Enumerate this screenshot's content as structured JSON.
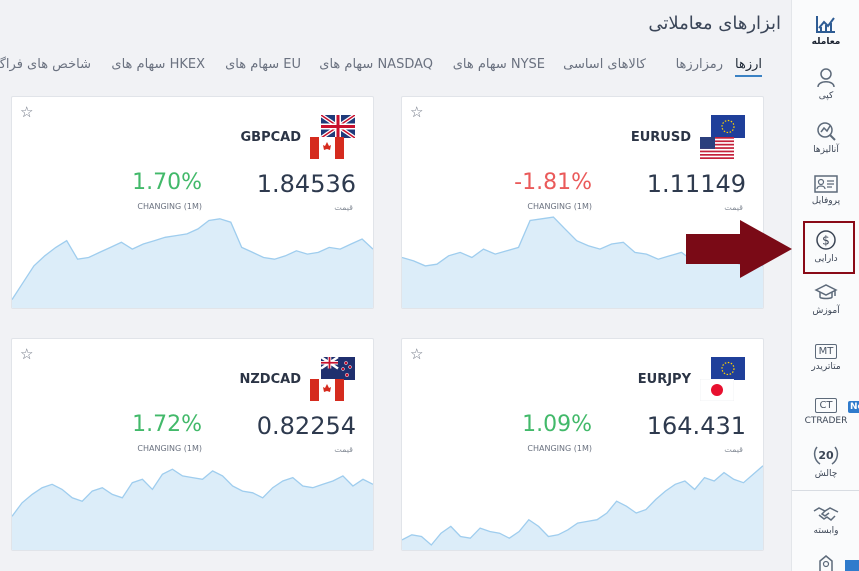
{
  "header": {
    "title": "ابزارهای معاملاتی",
    "tabs": [
      {
        "label": "ارزها",
        "active": true
      },
      {
        "label": "رمزارزها"
      },
      {
        "label": "کالاهای اساسی"
      },
      {
        "label": "سهام های NYSE"
      },
      {
        "label": "سهام های NASDAQ"
      },
      {
        "label": "سهام های EU"
      },
      {
        "label": "سهام های HKEX"
      },
      {
        "label": "شاخص های فراگیر"
      }
    ]
  },
  "sidebar": {
    "items": [
      {
        "label": "معامله",
        "icon": "trade-chart-icon",
        "active": true
      },
      {
        "label": "کپی",
        "icon": "user-copy-icon"
      },
      {
        "label": "آنالیزها",
        "icon": "analysis-icon"
      },
      {
        "label": "پروفایل",
        "icon": "profile-card-icon"
      },
      {
        "label": "دارایی",
        "icon": "dollar-coin-icon"
      },
      {
        "label": "آموزش",
        "icon": "graduation-cap-icon"
      },
      {
        "label": "متاتریدر",
        "icon_text": "MT"
      },
      {
        "label": "CTRADER",
        "icon_text": "CT",
        "badge": "Ne"
      },
      {
        "label": "چالش",
        "icon_text": "20"
      },
      {
        "label": "وابسته",
        "icon": "handshake-icon"
      }
    ]
  },
  "cards": [
    {
      "symbol": "EURUSD",
      "flags": [
        "eu-flag-icon",
        "us-flag-icon"
      ],
      "price": "1.11149",
      "price_label": "قیمت",
      "change": "-1.81%",
      "change_label": "CHANGING (1M)",
      "direction": "down",
      "series": [
        30,
        28,
        25,
        26,
        31,
        33,
        30,
        35,
        32,
        34,
        36,
        52,
        53,
        54,
        47,
        40,
        37,
        35,
        38,
        39,
        33,
        32,
        29,
        31,
        33,
        28,
        30,
        27,
        29,
        26,
        28,
        25
      ]
    },
    {
      "symbol": "GBPCAD",
      "flags": [
        "uk-flag-icon",
        "ca-flag-icon"
      ],
      "price": "1.84536",
      "price_label": "قیمت",
      "change": "1.70%",
      "change_label": "CHANGING (1M)",
      "direction": "up",
      "series": [
        5,
        15,
        25,
        31,
        36,
        40,
        29,
        30,
        33,
        36,
        39,
        35,
        38,
        40,
        42,
        43,
        44,
        47,
        52,
        53,
        51,
        36,
        33,
        30,
        29,
        31,
        34,
        32,
        33,
        36,
        35,
        38,
        41,
        35
      ]
    },
    {
      "symbol": "EURJPY",
      "flags": [
        "eu-flag-icon",
        "jp-flag-icon"
      ],
      "price": "164.431",
      "price_label": "قیمت",
      "change": "1.09%",
      "change_label": "CHANGING (1M)",
      "direction": "up",
      "series": [
        6,
        9,
        8,
        3,
        10,
        14,
        8,
        7,
        13,
        11,
        10,
        7,
        11,
        18,
        14,
        8,
        9,
        12,
        16,
        17,
        18,
        22,
        29,
        26,
        22,
        24,
        30,
        35,
        39,
        41,
        36,
        43,
        41,
        46,
        42,
        40,
        45,
        50
      ]
    },
    {
      "symbol": "NZDCAD",
      "flags": [
        "nz-flag-icon",
        "ca-flag-icon"
      ],
      "price": "0.82254",
      "price_label": "قیمت",
      "change": "1.72%",
      "change_label": "CHANGING (1M)",
      "direction": "up",
      "series": [
        20,
        28,
        33,
        37,
        39,
        36,
        31,
        29,
        35,
        37,
        33,
        31,
        40,
        42,
        36,
        45,
        48,
        44,
        43,
        42,
        47,
        44,
        38,
        35,
        34,
        31,
        37,
        41,
        43,
        38,
        37,
        39,
        41,
        44,
        38,
        42,
        39
      ]
    }
  ]
}
